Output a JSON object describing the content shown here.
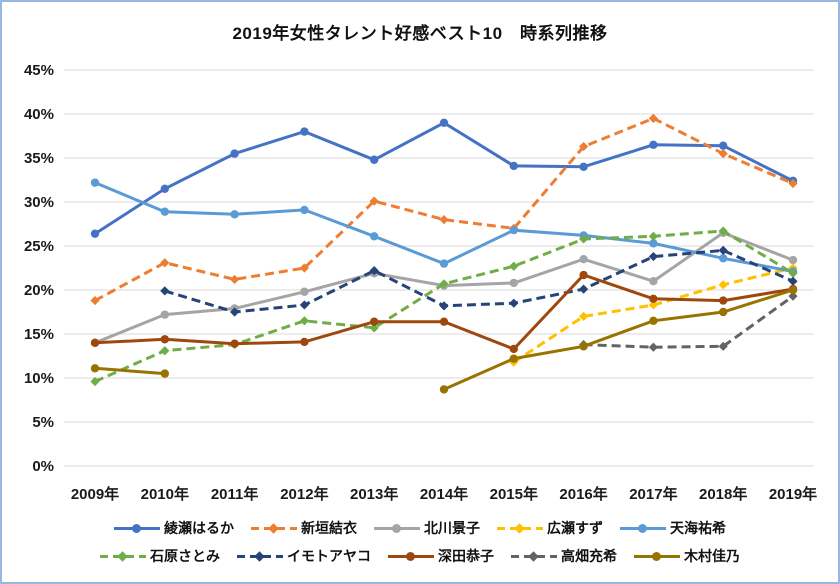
{
  "title": "2019年女性タレント好感ベスト10　時系列推移",
  "chart_data": {
    "type": "line",
    "categories": [
      "2009年",
      "2010年",
      "2011年",
      "2012年",
      "2013年",
      "2014年",
      "2015年",
      "2016年",
      "2017年",
      "2018年",
      "2019年"
    ],
    "xlabel": "",
    "ylabel": "",
    "y_axis": {
      "min": 0,
      "max": 45,
      "step": 5,
      "tick_suffix": "%"
    },
    "y_tick_labels": [
      "0%",
      "5%",
      "10%",
      "15%",
      "20%",
      "25%",
      "30%",
      "35%",
      "40%",
      "45%"
    ],
    "grid": "horizontal",
    "legend_position": "bottom",
    "series": [
      {
        "name": "綾瀬はるか",
        "id": "ayase-haruka",
        "color": "#4472C4",
        "line_style": "solid",
        "marker": "circle",
        "values": [
          26.4,
          31.5,
          35.5,
          38.0,
          34.8,
          39.0,
          34.1,
          34.0,
          36.5,
          36.4,
          32.4
        ]
      },
      {
        "name": "新垣結衣",
        "id": "aragaki-yui",
        "color": "#ED7D31",
        "line_style": "dashed",
        "marker": "diamond",
        "values": [
          18.8,
          23.1,
          21.2,
          22.5,
          30.1,
          28.0,
          27.0,
          36.3,
          39.5,
          35.5,
          32.1
        ]
      },
      {
        "name": "北川景子",
        "id": "kitagawa-keiko",
        "color": "#A5A5A5",
        "line_style": "solid",
        "marker": "circle",
        "values": [
          14.0,
          17.2,
          17.9,
          19.8,
          21.9,
          20.5,
          20.8,
          23.5,
          21.0,
          26.5,
          23.4
        ]
      },
      {
        "name": "広瀬すず",
        "id": "hirose-suzu",
        "color": "#FFC000",
        "line_style": "dashed",
        "marker": "diamond",
        "values": [
          null,
          null,
          null,
          null,
          null,
          null,
          11.8,
          17.0,
          18.3,
          20.6,
          22.5
        ]
      },
      {
        "name": "天海祐希",
        "id": "amami-yuki",
        "color": "#5B9BD5",
        "line_style": "solid",
        "marker": "circle",
        "values": [
          32.2,
          28.9,
          28.6,
          29.1,
          26.1,
          23.0,
          26.8,
          26.2,
          25.3,
          23.6,
          22.1
        ]
      },
      {
        "name": "石原さとみ",
        "id": "ishihara-satomi",
        "color": "#70AD47",
        "line_style": "dashed",
        "marker": "diamond",
        "values": [
          9.6,
          13.1,
          13.8,
          16.5,
          15.7,
          20.7,
          22.7,
          25.8,
          26.1,
          26.7,
          21.9
        ]
      },
      {
        "name": "イモトアヤコ",
        "id": "imoto-ayako",
        "color": "#264478",
        "line_style": "dashed",
        "marker": "diamond",
        "values": [
          null,
          19.9,
          17.5,
          18.3,
          22.2,
          18.2,
          18.5,
          20.1,
          23.8,
          24.5,
          21.0
        ]
      },
      {
        "name": "深田恭子",
        "id": "fukada-kyoko",
        "color": "#9E480E",
        "line_style": "solid",
        "marker": "circle",
        "values": [
          14.0,
          14.4,
          13.9,
          14.1,
          16.4,
          16.4,
          13.3,
          21.7,
          19.0,
          18.8,
          20.1
        ]
      },
      {
        "name": "高畑充希",
        "id": "takahata-mitsuki",
        "color": "#636363",
        "line_style": "dashed",
        "marker": "diamond",
        "values": [
          null,
          null,
          null,
          null,
          null,
          null,
          null,
          13.8,
          13.5,
          13.6,
          19.3
        ]
      },
      {
        "name": "木村佳乃",
        "id": "kimura-yoshino",
        "color": "#997300",
        "line_style": "solid",
        "marker": "circle",
        "values": [
          11.1,
          10.5,
          null,
          null,
          null,
          8.7,
          12.2,
          13.6,
          16.5,
          17.5,
          20.0
        ]
      }
    ]
  }
}
